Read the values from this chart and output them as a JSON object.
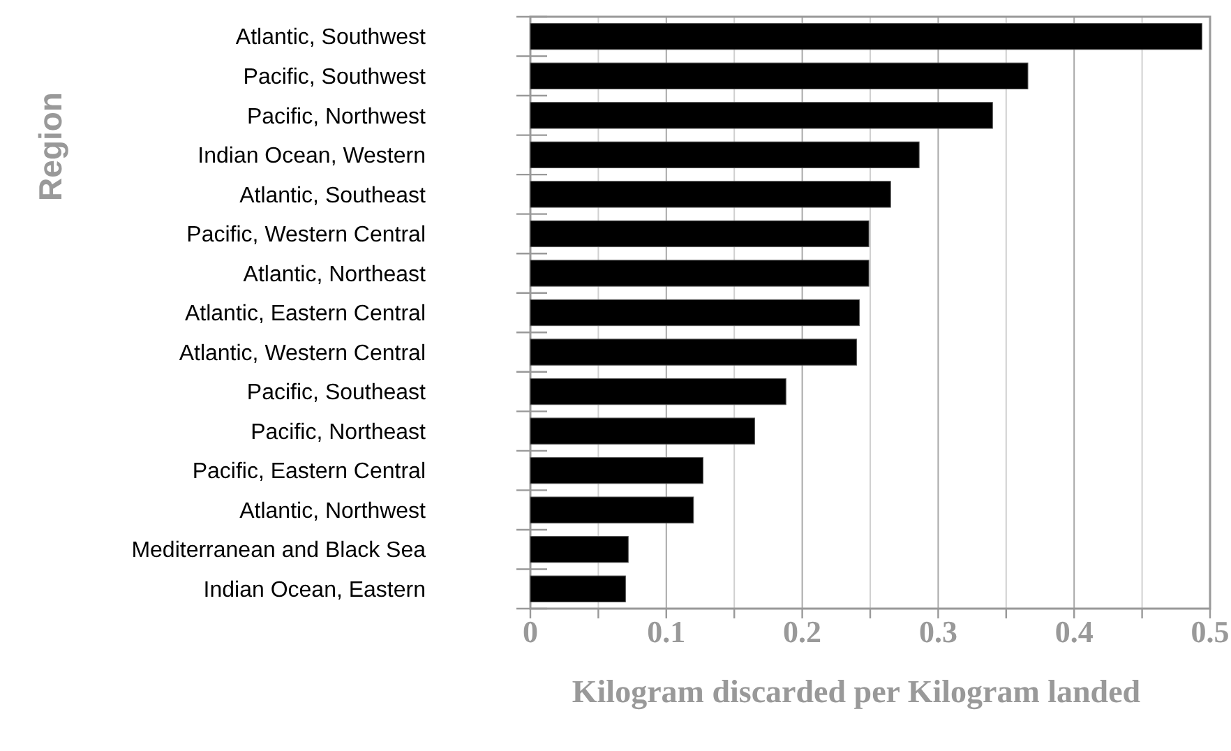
{
  "chart_data": {
    "type": "bar",
    "orientation": "horizontal",
    "xlabel": "Kilogram discarded per Kilogram landed",
    "ylabel": "Region",
    "categories": [
      "Atlantic, Southwest",
      "Pacific, Southwest",
      "Pacific, Northwest",
      "Indian Ocean, Western",
      "Atlantic, Southeast",
      "Pacific, Western Central",
      "Atlantic, Northeast",
      "Atlantic, Eastern Central",
      "Atlantic, Western Central",
      "Pacific, Southeast",
      "Pacific, Northeast",
      "Pacific, Eastern Central",
      "Atlantic, Northwest",
      "Mediterranean and Black Sea",
      "Indian Ocean, Eastern"
    ],
    "values": [
      0.494,
      0.366,
      0.34,
      0.286,
      0.265,
      0.249,
      0.249,
      0.242,
      0.24,
      0.188,
      0.165,
      0.127,
      0.12,
      0.072,
      0.07
    ],
    "color": "#000000",
    "xlim": [
      0,
      0.5
    ],
    "xticks": [
      0,
      {
        "value": 0.05,
        "label": null
      },
      0.1,
      {
        "value": 0.15,
        "label": null
      },
      0.2,
      {
        "value": 0.25,
        "label": null
      },
      0.3,
      {
        "value": 0.35,
        "label": null
      },
      0.4,
      {
        "value": 0.45,
        "label": null
      },
      0.5
    ],
    "grid": "x"
  }
}
